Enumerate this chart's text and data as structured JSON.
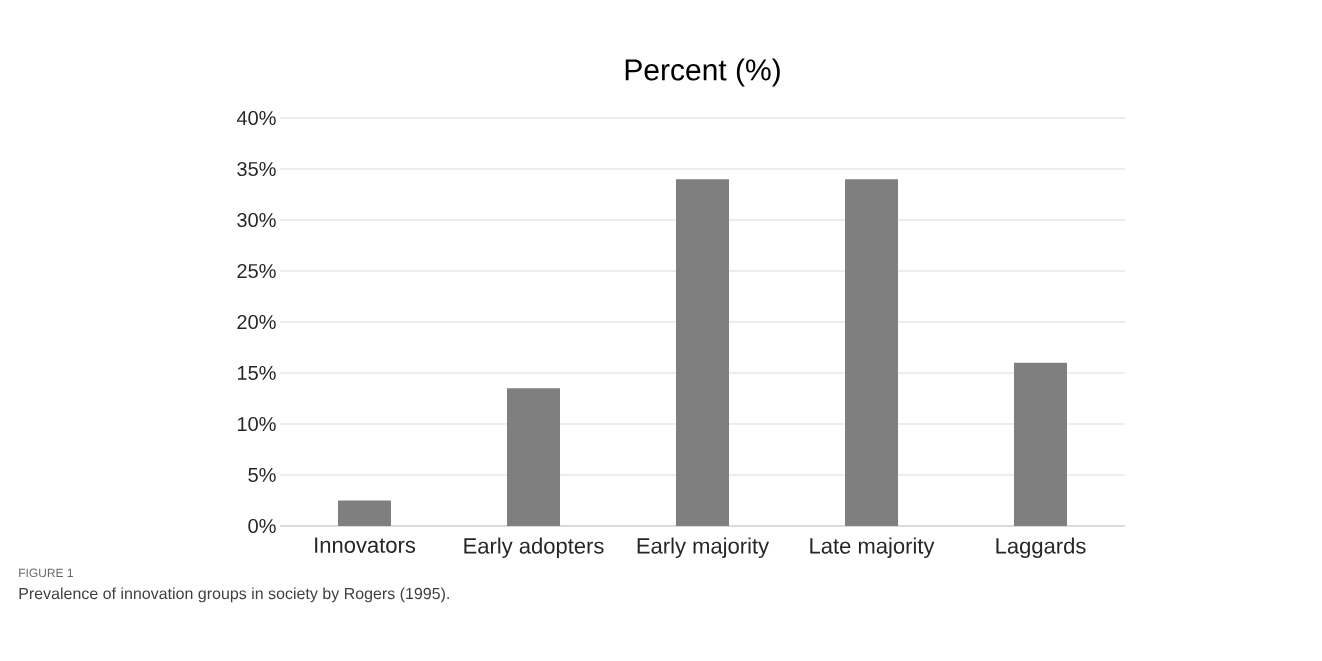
{
  "chart_data": {
    "type": "bar",
    "title": "Percent (%)",
    "categories": [
      "Innovators",
      "Early adopters",
      "Early majority",
      "Late majority",
      "Laggards"
    ],
    "values": [
      2.5,
      13.5,
      34,
      34,
      16
    ],
    "color": "#7f7f7f",
    "ylim": [
      0,
      40
    ],
    "yticks": [
      {
        "value": 0,
        "label": "0%"
      },
      {
        "value": 5,
        "label": "5%"
      },
      {
        "value": 10,
        "label": "10%"
      },
      {
        "value": 15,
        "label": "15%"
      },
      {
        "value": 20,
        "label": "20%"
      },
      {
        "value": 25,
        "label": "25%"
      },
      {
        "value": 30,
        "label": "30%"
      },
      {
        "value": 35,
        "label": "35%"
      },
      {
        "value": 40,
        "label": "40%"
      }
    ],
    "grid": "y",
    "annotations": [
      "FIGURE 1",
      "Prevalence of innovation groups in society by Rogers (1995)."
    ]
  }
}
